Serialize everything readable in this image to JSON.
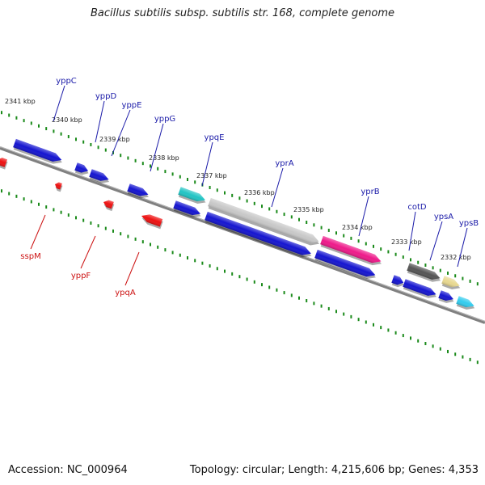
{
  "title": "Bacillus subtilis subsp. subtilis str. 168, complete genome",
  "footer": {
    "accession": "Accession: NC_000964",
    "summary": "Topology: circular; Length: 4,215,606 bp; Genes: 4,353"
  },
  "kbp_ticks": [
    {
      "label": "2341 kbp"
    },
    {
      "label": "2340 kbp"
    },
    {
      "label": "2339 kbp"
    },
    {
      "label": "2338 kbp"
    },
    {
      "label": "2337 kbp"
    },
    {
      "label": "2336 kbp"
    },
    {
      "label": "2335 kbp"
    },
    {
      "label": "2334 kbp"
    },
    {
      "label": "2333 kbp"
    },
    {
      "label": "2332 kbp"
    }
  ],
  "genes_top": [
    {
      "name": "yppC",
      "color": "#1a1aa8"
    },
    {
      "name": "yppD",
      "color": "#1a1aa8"
    },
    {
      "name": "yppE",
      "color": "#1a1aa8"
    },
    {
      "name": "yppG",
      "color": "#1a1aa8"
    },
    {
      "name": "ypqE",
      "color": "#1a1aa8"
    },
    {
      "name": "yprA",
      "color": "#1a1aa8"
    },
    {
      "name": "yprB",
      "color": "#1a1aa8"
    },
    {
      "name": "cotD",
      "color": "#1a1aa8"
    },
    {
      "name": "ypsA",
      "color": "#1a1aa8"
    },
    {
      "name": "ypsB",
      "color": "#1a1aa8"
    }
  ],
  "genes_bottom": [
    {
      "name": "sspM",
      "color": "#cc1111"
    },
    {
      "name": "yppF",
      "color": "#cc1111"
    },
    {
      "name": "ypqA",
      "color": "#cc1111"
    }
  ],
  "colors": {
    "forward": "#1515d0",
    "reverse": "#ee1111",
    "backbone": "#808080",
    "tick": "#1a8a1a",
    "cyan": "#22c4c4",
    "gray_feature": "#c8c8c8",
    "magenta": "#ee1a8a",
    "dark_feature": "#555555",
    "tan": "#e8d890",
    "light_blue": "#33ccee"
  }
}
